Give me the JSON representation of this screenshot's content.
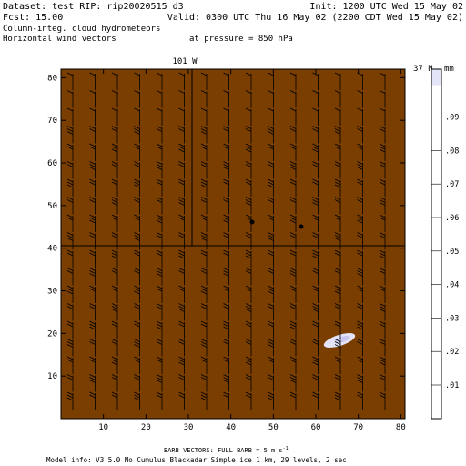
{
  "header": {
    "dataset": "Dataset: test  RIP: rip20020515 d3",
    "init": "Init: 1200 UTC Wed 15 May 02",
    "fcst": "Fcst:    15.00",
    "valid": "Valid: 0300 UTC Thu 16 May 02 (2200 CDT Wed 15 May 02)",
    "field1": "Column-integ. cloud hydrometeors",
    "field2": "Horizontal wind vectors",
    "pressure": "at pressure =  850 hPa"
  },
  "plot": {
    "top_label_lon": "101 W",
    "top_label_lat": "37 N",
    "x_ticks": [
      "10",
      "20",
      "30",
      "40",
      "50",
      "60",
      "70",
      "80"
    ],
    "y_ticks": [
      "10",
      "20",
      "30",
      "40",
      "50",
      "60",
      "70",
      "80"
    ],
    "background_color": "#7a3e00",
    "cloud_color": "#e4e4f8"
  },
  "colorbar": {
    "unit": "mm",
    "labels": [
      ".01",
      ".02",
      ".03",
      ".04",
      ".05",
      ".06",
      ".07",
      ".08",
      ".09"
    ],
    "top_color": "#e4e4f8"
  },
  "footer": {
    "barb": "BARB VECTORS:  FULL BARB = 5 m s",
    "barb_exp": "-1",
    "model": "Model info: V3.5.0 No Cumulus Blackadar  Simple ice    1 km,  29 levels,   2 sec"
  }
}
